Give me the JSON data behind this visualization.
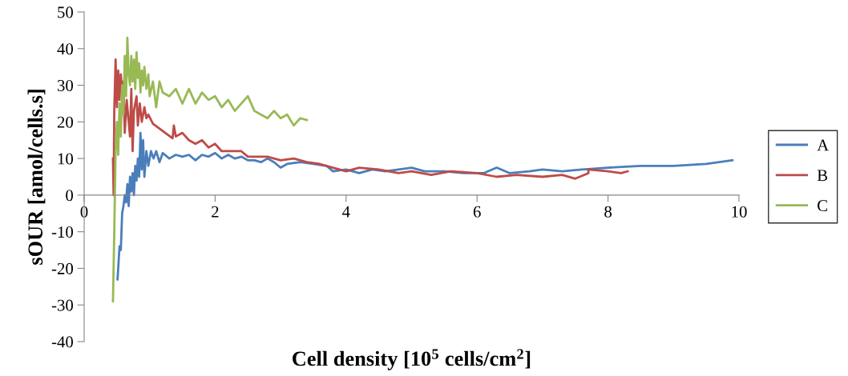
{
  "chart_data": {
    "type": "line",
    "xlabel": "Cell density [10$^{5}$ cells/cm$^{2}$]",
    "ylabel": "sOUR [amol/cells.s]",
    "xlim": [
      0,
      10
    ],
    "xticks": [
      0,
      2,
      4,
      6,
      8,
      10
    ],
    "ylim": [
      -40,
      50
    ],
    "yticks": [
      -40,
      -30,
      -20,
      -10,
      0,
      10,
      20,
      30,
      40,
      50
    ],
    "legend": "right",
    "grid": false,
    "marker": "none",
    "line_style": "solid",
    "series": [
      {
        "name": "A",
        "color": "#4a7ebb",
        "x": [
          0.51,
          0.54,
          0.56,
          0.58,
          0.6,
          0.62,
          0.64,
          0.66,
          0.68,
          0.7,
          0.72,
          0.74,
          0.76,
          0.78,
          0.8,
          0.82,
          0.84,
          0.86,
          0.88,
          0.9,
          0.92,
          0.95,
          0.98,
          1.02,
          1.06,
          1.1,
          1.15,
          1.2,
          1.3,
          1.4,
          1.5,
          1.6,
          1.7,
          1.8,
          1.9,
          2.0,
          2.1,
          2.2,
          2.3,
          2.4,
          2.5,
          2.6,
          2.7,
          2.8,
          2.9,
          3.0,
          3.1,
          3.3,
          3.5,
          3.7,
          3.8,
          4.0,
          4.2,
          4.4,
          4.6,
          4.8,
          5.0,
          5.2,
          5.5,
          5.8,
          6.1,
          6.3,
          6.5,
          6.8,
          7.0,
          7.3,
          7.6,
          8.0,
          8.5,
          9.0,
          9.5,
          9.9
        ],
        "values": [
          -23,
          -14,
          -15,
          -5,
          -3,
          0,
          -2,
          3,
          -3,
          5,
          1,
          6,
          0,
          8,
          4,
          10,
          5,
          17,
          7,
          15,
          5,
          12,
          8,
          12,
          10,
          12,
          9,
          11.5,
          10,
          11,
          10.5,
          11,
          9.5,
          11,
          10.5,
          11.5,
          10,
          11,
          10,
          10.5,
          9.5,
          9.5,
          9,
          10,
          9,
          7.5,
          8.5,
          9,
          8.5,
          8,
          6.5,
          7,
          6,
          7,
          6.5,
          7,
          7.5,
          6.5,
          6.5,
          6,
          6,
          7.5,
          6,
          6.5,
          7,
          6.5,
          7,
          7.5,
          8,
          8,
          8.5,
          9.5
        ]
      },
      {
        "name": "B",
        "color": "#be4b48",
        "x": [
          0.44,
          0.45,
          0.46,
          0.48,
          0.5,
          0.52,
          0.54,
          0.56,
          0.58,
          0.6,
          0.62,
          0.65,
          0.7,
          0.72,
          0.74,
          0.76,
          0.8,
          0.82,
          0.85,
          0.88,
          0.92,
          0.95,
          0.98,
          1.05,
          1.35,
          1.37,
          1.4,
          1.5,
          1.6,
          1.7,
          1.8,
          1.9,
          2.0,
          2.1,
          2.4,
          2.5,
          2.8,
          3.0,
          3.2,
          3.4,
          3.6,
          3.8,
          4.0,
          4.2,
          4.5,
          4.8,
          5.0,
          5.3,
          5.6,
          6.0,
          6.3,
          6.6,
          7.0,
          7.3,
          7.5,
          7.7,
          7.7,
          8.0,
          8.2,
          8.3
        ],
        "values": [
          10,
          0,
          23,
          37,
          24,
          34,
          26,
          33,
          28,
          31,
          17,
          26,
          16,
          29,
          12,
          23,
          27,
          19,
          25,
          20,
          24,
          21,
          22,
          19.5,
          15.5,
          19,
          16,
          17,
          15,
          14,
          15,
          13,
          14,
          12,
          12,
          10.5,
          10.5,
          9.5,
          10,
          9,
          8.5,
          7.5,
          6.5,
          7.5,
          7,
          6,
          6.5,
          5.5,
          6.5,
          6,
          5,
          5.5,
          5,
          5.5,
          4.5,
          6,
          7,
          6.5,
          6,
          6.5
        ]
      },
      {
        "name": "C",
        "color": "#98b954",
        "x": [
          0.44,
          0.46,
          0.48,
          0.5,
          0.52,
          0.54,
          0.56,
          0.58,
          0.6,
          0.62,
          0.64,
          0.66,
          0.68,
          0.7,
          0.72,
          0.74,
          0.76,
          0.78,
          0.8,
          0.82,
          0.84,
          0.86,
          0.88,
          0.9,
          0.92,
          0.95,
          0.98,
          1.0,
          1.05,
          1.1,
          1.15,
          1.2,
          1.3,
          1.4,
          1.5,
          1.6,
          1.7,
          1.8,
          1.9,
          2.0,
          2.1,
          2.2,
          2.3,
          2.4,
          2.5,
          2.6,
          2.7,
          2.8,
          2.9,
          3.0,
          3.1,
          3.2,
          3.3,
          3.4
        ],
        "values": [
          -29,
          -10,
          12,
          20,
          11,
          25,
          16,
          30,
          22,
          38,
          27,
          43,
          33,
          30,
          38,
          31,
          37,
          29,
          39,
          32,
          36,
          28,
          34,
          30,
          35,
          29,
          33,
          27,
          31,
          24,
          31,
          28,
          27,
          29,
          25,
          29,
          25,
          28,
          26,
          27,
          24,
          26,
          23,
          25,
          27,
          23,
          22,
          21,
          23,
          21,
          22,
          19,
          21,
          20.5
        ]
      }
    ]
  }
}
